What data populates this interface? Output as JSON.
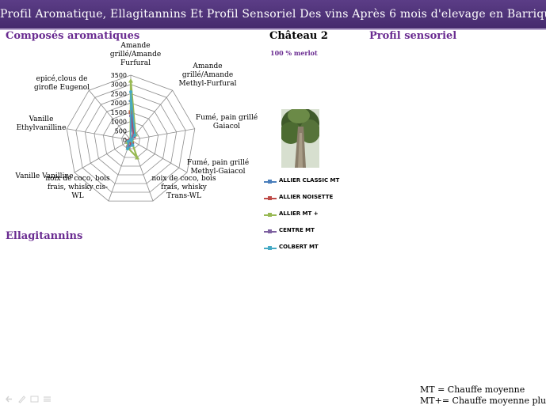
{
  "slide": {
    "title": "Profil Aromatique, Ellagitannins Et Profil Sensoriel Des vins Après 6 mois d'elevage en Barriques",
    "section_left": "Composés aromatiques",
    "section_right": "Profil sensoriel",
    "section_bottom": "Ellagitannins",
    "chateau_title": "Château 2",
    "chateau_subtitle": "100 % merlot",
    "footnote_lines": [
      "MT = Chauffe moyenne",
      "MT+= Chauffe moyenne plus"
    ]
  },
  "icons": [
    "tree-photo",
    "nav-back-icon",
    "nav-pen-icon",
    "nav-slides-icon",
    "nav-menu-icon"
  ],
  "colors": {
    "title_bar": "#4f3478",
    "section_text": "#6a2c91"
  },
  "chart_data": {
    "type": "radar",
    "title": "",
    "axes": [
      "Amande grillé/Amande Furfural",
      "Amande grillé/Amande Methyl-Furfural",
      "Fumé, pain grillé Gaiacol",
      "Fumé, pain grillé Methyl-Gaiacol",
      "noix de coco, bois frais, whisky Trans-WL",
      "noix de coco, bois frais, whisky cis-WL",
      "Vanille Vanilline",
      "Vanille Ethylvanilline",
      "epicé,clous de girofle Eugenol"
    ],
    "axis_label_lines": [
      [
        "Amande",
        "grillé/Amande",
        "Furfural"
      ],
      [
        "Amande",
        "grillé/Amande",
        "Methyl-Furfural"
      ],
      [
        "Fumé, pain grillé",
        "Gaiacol"
      ],
      [
        "Fumé, pain grillé",
        "Methyl-Gaiacol"
      ],
      [
        "noix de coco, bois",
        "frais, whisky",
        "Trans-WL"
      ],
      [
        "noix de coco, bois",
        "frais, whisky cis-",
        "WL"
      ],
      [
        "Vanille Vanilline"
      ],
      [
        "Vanille",
        "Ethylvanilline"
      ],
      [
        "epicé,clous de",
        "girofle Eugenol"
      ]
    ],
    "rlim": [
      0,
      3500
    ],
    "ticks": [
      0,
      500,
      1000,
      1500,
      2000,
      2500,
      3000,
      3500
    ],
    "series": [
      {
        "name": "ALLIER CLASSIC MT",
        "color": "#4a7ebb",
        "marker": "diamond",
        "values": [
          2100,
          300,
          30,
          20,
          200,
          400,
          150,
          10,
          20
        ]
      },
      {
        "name": "ALLIER NOISETTE",
        "color": "#be4b48",
        "marker": "square",
        "values": [
          1500,
          250,
          25,
          15,
          180,
          380,
          140,
          10,
          15
        ]
      },
      {
        "name": "ALLIER MT +",
        "color": "#98b954",
        "marker": "triangle",
        "values": [
          3200,
          400,
          60,
          30,
          1000,
          450,
          200,
          10,
          25
        ]
      },
      {
        "name": "CENTRE MT",
        "color": "#7d60a0",
        "marker": "cross",
        "values": [
          1300,
          200,
          20,
          15,
          250,
          350,
          120,
          10,
          15
        ]
      },
      {
        "name": "COLBERT MT",
        "color": "#46aac5",
        "marker": "star",
        "values": [
          2600,
          350,
          40,
          20,
          300,
          500,
          160,
          10,
          20
        ]
      }
    ]
  }
}
